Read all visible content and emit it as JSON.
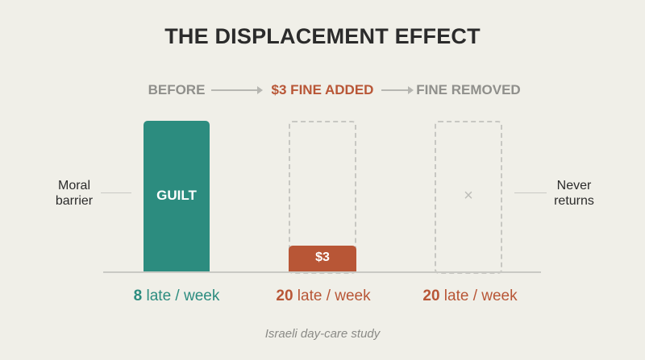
{
  "title": "THE DISPLACEMENT EFFECT",
  "phases": [
    {
      "label": "BEFORE",
      "color": "#8f8f8b"
    },
    {
      "label": "$3 FINE ADDED",
      "color": "#b85636"
    },
    {
      "label": "FINE REMOVED",
      "color": "#8f8f8b"
    }
  ],
  "bars": {
    "guilt_label": "GUILT",
    "fine_label": "$3",
    "removed_mark": "×"
  },
  "side_labels": {
    "left": "Moral barrier",
    "right": "Never returns"
  },
  "counts": [
    {
      "number": "8",
      "unit": " late / week",
      "color": "#2c8c7f"
    },
    {
      "number": "20",
      "unit": " late / week",
      "color": "#b85636"
    },
    {
      "number": "20",
      "unit": " late / week",
      "color": "#b85636"
    }
  ],
  "caption": "Israeli day-care study",
  "colors": {
    "teal": "#2c8c7f",
    "rust": "#b85636",
    "gray": "#8f8f8b",
    "background": "#f0efe8"
  }
}
